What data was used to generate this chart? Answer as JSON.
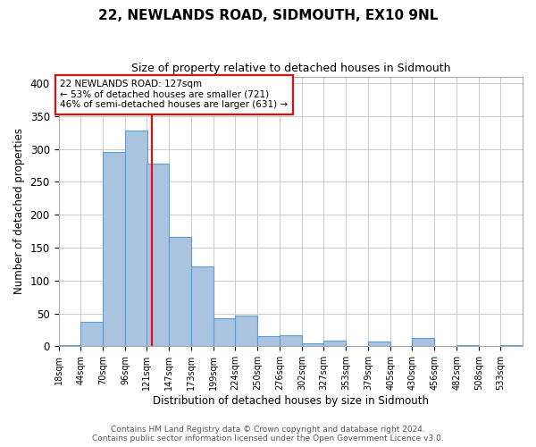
{
  "title": "22, NEWLANDS ROAD, SIDMOUTH, EX10 9NL",
  "subtitle": "Size of property relative to detached houses in Sidmouth",
  "xlabel": "Distribution of detached houses by size in Sidmouth",
  "ylabel": "Number of detached properties",
  "bin_labels": [
    "18sqm",
    "44sqm",
    "70sqm",
    "96sqm",
    "121sqm",
    "147sqm",
    "173sqm",
    "199sqm",
    "224sqm",
    "250sqm",
    "276sqm",
    "302sqm",
    "327sqm",
    "353sqm",
    "379sqm",
    "405sqm",
    "430sqm",
    "456sqm",
    "482sqm",
    "508sqm",
    "533sqm"
  ],
  "bin_edges": [
    18,
    44,
    70,
    96,
    121,
    147,
    173,
    199,
    224,
    250,
    276,
    302,
    327,
    353,
    379,
    405,
    430,
    456,
    482,
    508,
    533
  ],
  "bar_heights": [
    2,
    37,
    295,
    328,
    278,
    166,
    122,
    43,
    46,
    16,
    17,
    5,
    8,
    0,
    7,
    0,
    13,
    0,
    2,
    0,
    2
  ],
  "bar_color": "#aac4e0",
  "bar_edgecolor": "#5a9fd4",
  "property_line_x": 127,
  "property_line_color": "red",
  "ylim": [
    0,
    410
  ],
  "yticks": [
    0,
    50,
    100,
    150,
    200,
    250,
    300,
    350,
    400
  ],
  "annotation_title": "22 NEWLANDS ROAD: 127sqm",
  "annotation_line1": "← 53% of detached houses are smaller (721)",
  "annotation_line2": "46% of semi-detached houses are larger (631) →",
  "annotation_box_color": "white",
  "annotation_box_edgecolor": "red",
  "footer1": "Contains HM Land Registry data © Crown copyright and database right 2024.",
  "footer2": "Contains public sector information licensed under the Open Government Licence v3.0.",
  "background_color": "white",
  "grid_color": "#cccccc"
}
